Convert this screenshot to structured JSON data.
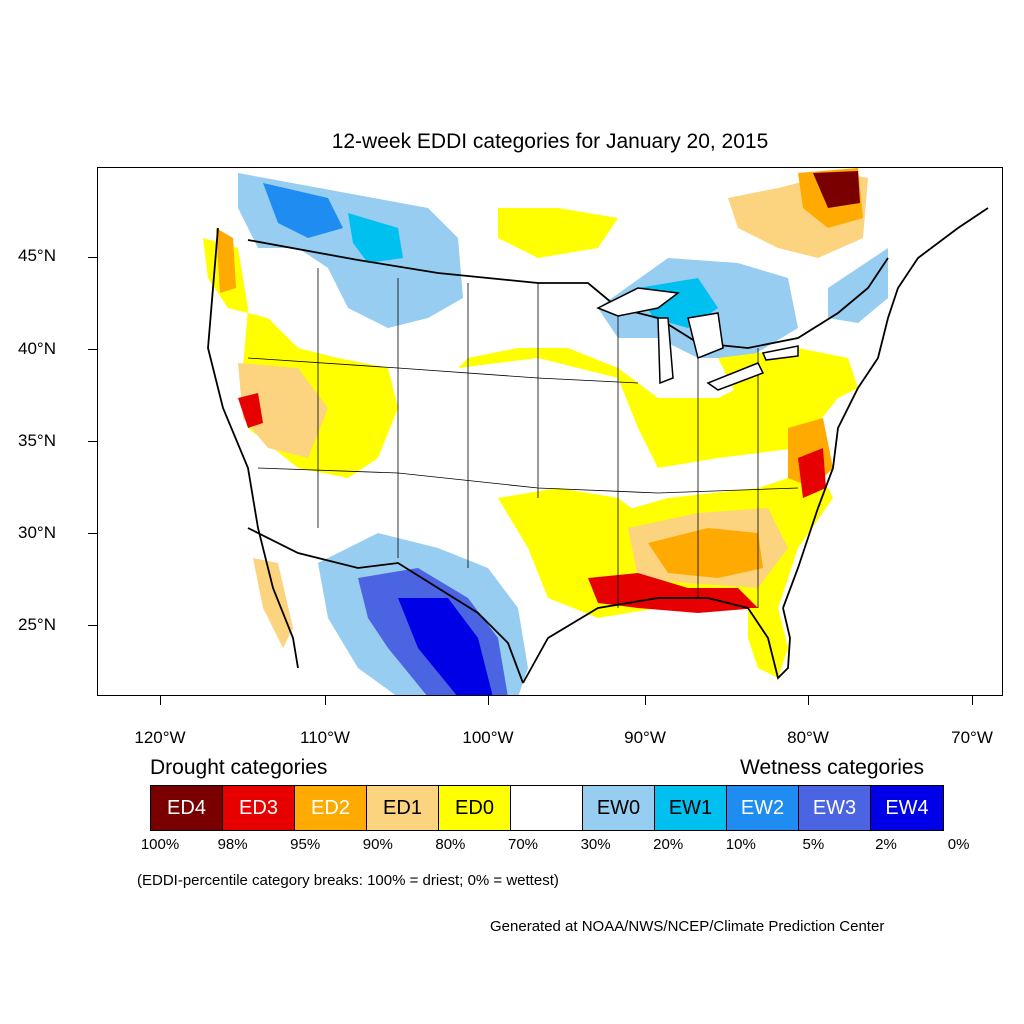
{
  "title": "12-week EDDI categories for January 20, 2015",
  "latitude_labels": [
    "45°N",
    "40°N",
    "35°N",
    "30°N",
    "25°N"
  ],
  "longitude_labels": [
    "120°W",
    "110°W",
    "100°W",
    "90°W",
    "80°W",
    "70°W"
  ],
  "legend": {
    "drought_heading": "Drought categories",
    "wetness_heading": "Wetness categories",
    "categories": [
      {
        "label": "ED4",
        "color": "#7a0000",
        "text_color": "#ffffff"
      },
      {
        "label": "ED3",
        "color": "#e60000",
        "text_color": "#ffffff"
      },
      {
        "label": "ED2",
        "color": "#ffaa00",
        "text_color": "#ffffff"
      },
      {
        "label": "ED1",
        "color": "#fcd37f",
        "text_color": "#000000"
      },
      {
        "label": "ED0",
        "color": "#ffff00",
        "text_color": "#000000"
      },
      {
        "label": "",
        "color": "#ffffff",
        "text_color": "#000000"
      },
      {
        "label": "EW0",
        "color": "#96cdf0",
        "text_color": "#000000"
      },
      {
        "label": "EW1",
        "color": "#00c0f0",
        "text_color": "#000000"
      },
      {
        "label": "EW2",
        "color": "#1e8cf0",
        "text_color": "#ffffff"
      },
      {
        "label": "EW3",
        "color": "#4b64e1",
        "text_color": "#ffffff"
      },
      {
        "label": "EW4",
        "color": "#0000e6",
        "text_color": "#ffffff"
      }
    ],
    "percentiles": [
      "100%",
      "98%",
      "95%",
      "90%",
      "80%",
      "70%",
      "30%",
      "20%",
      "10%",
      "5%",
      "2%",
      "0%"
    ]
  },
  "note": "(EDDI-percentile category breaks: 100% = driest; 0% = wettest)",
  "credit": "Generated at NOAA/NWS/NCEP/Climate Prediction Center"
}
